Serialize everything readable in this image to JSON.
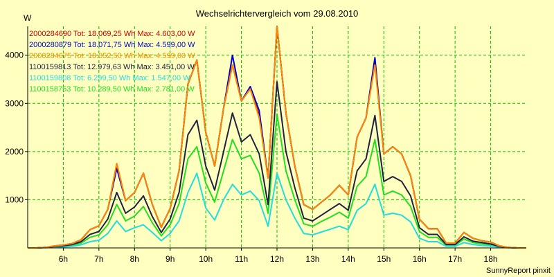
{
  "chart_data": {
    "type": "line",
    "title": "Wechselrichtervergleich vom 29.08.2010",
    "ylabel": "W",
    "footer": "SunnyReport pinxit",
    "xlim": [
      5,
      19
    ],
    "ylim": [
      0,
      4600
    ],
    "x_ticks": [
      "6h",
      "7h",
      "8h",
      "9h",
      "10h",
      "11h",
      "12h",
      "13h",
      "14h",
      "15h",
      "16h",
      "17h",
      "18h"
    ],
    "x_tick_values": [
      6,
      7,
      8,
      9,
      10,
      11,
      12,
      13,
      14,
      15,
      16,
      17,
      18
    ],
    "y_ticks": [
      "1000",
      "2000",
      "3000",
      "4000"
    ],
    "y_tick_values": [
      1000,
      2000,
      3000,
      4000
    ],
    "grid": true,
    "legend_position": "top-left",
    "x": [
      5.0,
      5.25,
      5.5,
      5.75,
      6.0,
      6.25,
      6.5,
      6.75,
      7.0,
      7.25,
      7.5,
      7.75,
      8.0,
      8.25,
      8.5,
      8.75,
      9.0,
      9.25,
      9.5,
      9.75,
      10.0,
      10.25,
      10.5,
      10.75,
      11.0,
      11.25,
      11.5,
      11.75,
      12.0,
      12.25,
      12.5,
      12.75,
      13.0,
      13.25,
      13.5,
      13.75,
      14.0,
      14.25,
      14.5,
      14.75,
      15.0,
      15.25,
      15.5,
      15.75,
      16.0,
      16.25,
      16.5,
      16.75,
      17.0,
      17.25,
      17.5,
      17.75,
      18.0,
      18.25,
      18.5,
      18.75,
      19.0
    ],
    "series": [
      {
        "name": "2000284690 Tot: 18.069,25 Wh Max: 4.603,00 W",
        "color": "#cc0000",
        "values": [
          0,
          0,
          10,
          40,
          60,
          90,
          170,
          380,
          460,
          800,
          1750,
          980,
          1150,
          1550,
          900,
          430,
          820,
          1600,
          3400,
          3900,
          2400,
          1700,
          2900,
          3800,
          3050,
          3300,
          2750,
          1450,
          4600,
          2800,
          1700,
          900,
          800,
          950,
          1100,
          1300,
          1100,
          2300,
          2700,
          3850,
          1950,
          2100,
          1950,
          1500,
          600,
          400,
          400,
          100,
          100,
          320,
          200,
          150,
          120,
          40,
          10,
          0,
          0
        ]
      },
      {
        "name": "2000280879 Tot: 18.071,75 Wh Max: 4.599,00 W",
        "color": "#0000cc",
        "values": [
          0,
          0,
          10,
          40,
          60,
          90,
          170,
          380,
          460,
          800,
          1650,
          980,
          1150,
          1550,
          900,
          430,
          820,
          1600,
          3400,
          3900,
          2400,
          1700,
          2900,
          4000,
          3050,
          3350,
          2850,
          1450,
          4600,
          2800,
          1700,
          900,
          800,
          950,
          1100,
          1300,
          1100,
          2300,
          2700,
          3950,
          1950,
          2100,
          1950,
          1500,
          600,
          400,
          400,
          100,
          100,
          320,
          200,
          150,
          120,
          40,
          10,
          0,
          0
        ]
      },
      {
        "name": "2000284675 Tot: 18.052,50 Wh Max: 4.599,00 W",
        "color": "#ff8800",
        "values": [
          0,
          0,
          10,
          40,
          60,
          90,
          170,
          380,
          460,
          800,
          1750,
          980,
          1150,
          1550,
          900,
          430,
          820,
          1600,
          3400,
          3900,
          2400,
          1700,
          2900,
          3800,
          3050,
          3300,
          2700,
          1450,
          4600,
          2800,
          1700,
          900,
          800,
          950,
          1100,
          1300,
          1100,
          2300,
          2700,
          3800,
          1950,
          2100,
          1950,
          1500,
          600,
          400,
          400,
          100,
          100,
          320,
          200,
          150,
          120,
          40,
          10,
          0,
          0
        ]
      },
      {
        "name": "1100159813 Tot: 12.979,63 Wh Max: 3.451,00 W",
        "color": "#202040",
        "values": [
          0,
          0,
          10,
          30,
          45,
          70,
          130,
          280,
          340,
          600,
          1150,
          720,
          850,
          1080,
          650,
          320,
          600,
          1150,
          2350,
          2650,
          1700,
          1200,
          2000,
          2800,
          2200,
          2350,
          1950,
          900,
          3450,
          2000,
          1250,
          620,
          560,
          680,
          800,
          920,
          780,
          1600,
          1850,
          2750,
          1380,
          1480,
          1380,
          1080,
          420,
          280,
          280,
          70,
          70,
          230,
          140,
          110,
          80,
          30,
          8,
          0,
          0
        ]
      },
      {
        "name": "1100159808 Tot: 6.299,50 Wh Max: 1.547,00 W",
        "color": "#22dddd",
        "values": [
          0,
          0,
          5,
          15,
          20,
          35,
          65,
          130,
          160,
          300,
          560,
          340,
          420,
          480,
          320,
          150,
          300,
          560,
          1150,
          1550,
          830,
          580,
          1000,
          1320,
          1100,
          1180,
          980,
          450,
          1550,
          1000,
          620,
          300,
          270,
          330,
          390,
          450,
          380,
          780,
          920,
          1320,
          680,
          720,
          680,
          540,
          200,
          130,
          130,
          35,
          35,
          110,
          70,
          50,
          40,
          15,
          4,
          0,
          0
        ]
      },
      {
        "name": "1100158753 Tot: 10.289,50 Wh Max: 2.781,00 W",
        "color": "#22dd22",
        "values": [
          0,
          0,
          8,
          25,
          35,
          55,
          100,
          220,
          270,
          480,
          900,
          560,
          660,
          860,
          520,
          250,
          480,
          920,
          1850,
          2100,
          1350,
          950,
          1600,
          2250,
          1850,
          1920,
          1550,
          720,
          2780,
          1600,
          1000,
          500,
          450,
          550,
          640,
          740,
          620,
          1280,
          1480,
          2250,
          1100,
          1180,
          1100,
          860,
          340,
          220,
          220,
          55,
          55,
          185,
          110,
          85,
          65,
          25,
          6,
          0,
          0
        ]
      }
    ]
  }
}
